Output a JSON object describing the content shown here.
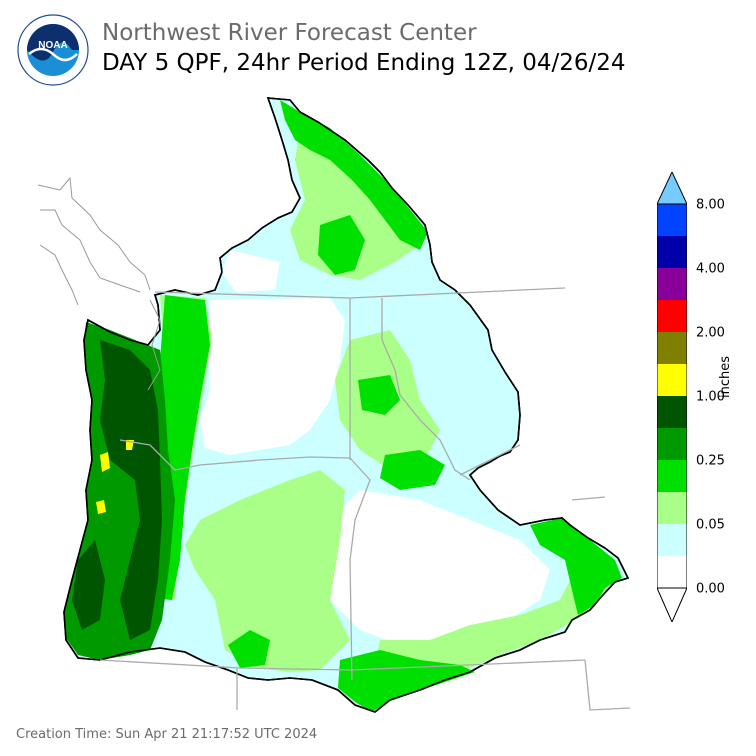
{
  "header": {
    "org_title": "Northwest River Forecast Center",
    "product_title": "DAY 5 QPF, 24hr Period Ending 12Z, 04/26/24"
  },
  "logo": {
    "text": "NOAA",
    "ring_text": "NATIONAL OCEANIC AND ATMOSPHERIC ADMINISTRATION · U.S. DEPARTMENT OF COMMERCE"
  },
  "legend": {
    "units": "inches",
    "labeled_ticks": [
      "8.00",
      "4.00",
      "2.00",
      "1.00",
      "0.25",
      "0.05",
      "0.00"
    ],
    "colors": [
      "#ffffff",
      "#ccffff",
      "#aaff88",
      "#00e000",
      "#009900",
      "#005500",
      "#ffff00",
      "#808000",
      "#ff0000",
      "#880099",
      "#0000aa",
      "#0044ff",
      "#77ccff"
    ]
  },
  "footer": {
    "creation_time": "Creation Time: Sun Apr 21 21:17:52 UTC 2024"
  }
}
